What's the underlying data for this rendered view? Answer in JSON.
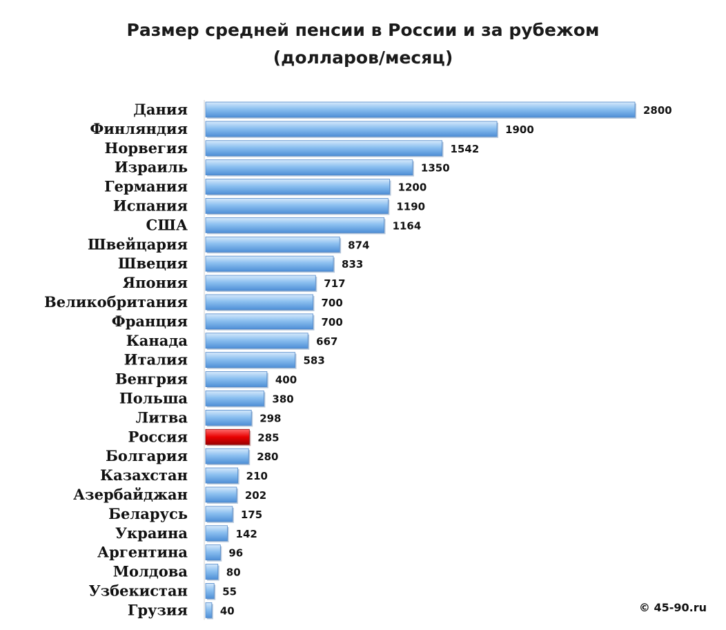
{
  "chart_data": {
    "type": "bar",
    "orientation": "horizontal",
    "title": "Размер средней пенсии в России и за рубежом",
    "subtitle": "(долларов/месяц)",
    "categories": [
      "Дания",
      "Финляндия",
      "Норвегия",
      "Израиль",
      "Германия",
      "Испания",
      "США",
      "Швейцария",
      "Швеция",
      "Япония",
      "Великобритания",
      "Франция",
      "Канада",
      "Италия",
      "Венгрия",
      "Польша",
      "Литва",
      "Россия",
      "Болгария",
      "Казахстан",
      "Азербайджан",
      "Беларусь",
      "Украина",
      "Аргентина",
      "Молдова",
      "Узбекистан",
      "Грузия"
    ],
    "values": [
      2800,
      1900,
      1542,
      1350,
      1200,
      1190,
      1164,
      874,
      833,
      717,
      700,
      700,
      667,
      583,
      400,
      380,
      298,
      285,
      280,
      210,
      202,
      175,
      142,
      96,
      80,
      55,
      40
    ],
    "highlight": "Россия",
    "colors": {
      "bar": "#7fb6ec",
      "bar_highlight": "#e00000"
    },
    "xlim": [
      0,
      2800
    ],
    "grid": false,
    "legend": "none"
  },
  "credit": "© 45-90.ru"
}
